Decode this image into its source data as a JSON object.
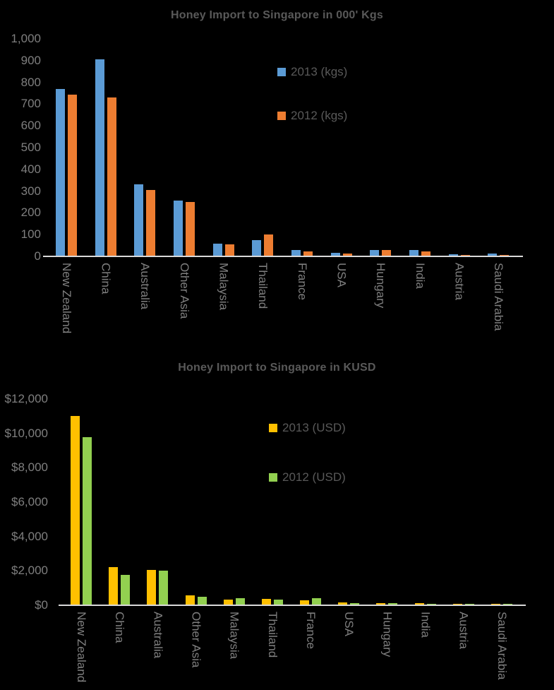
{
  "page": {
    "background": "#000000",
    "title_color": "#595959",
    "axis_text_color": "#7f7f7f",
    "axis_line_color": "#d9d9d9"
  },
  "chart_data": [
    {
      "type": "bar",
      "title": "Honey Import to Singapore in 000' Kgs",
      "categories": [
        "New Zealand",
        "China",
        "Australia",
        "Other Asia",
        "Malaysia",
        "Thailand",
        "France",
        "USA",
        "Hungary",
        "India",
        "Austria",
        "Saudi Arabia"
      ],
      "series": [
        {
          "name": "2013 (kgs)",
          "color": "#5B9BD5",
          "values": [
            770,
            905,
            330,
            255,
            60,
            75,
            28,
            15,
            28,
            30,
            10,
            12
          ]
        },
        {
          "name": "2012 (kgs)",
          "color": "#ED7D31",
          "values": [
            745,
            730,
            305,
            250,
            55,
            100,
            22,
            13,
            30,
            22,
            8,
            8
          ]
        }
      ],
      "xlabel": "",
      "ylabel": "",
      "ylim": [
        0,
        1000
      ],
      "y_ticks": [
        "1,000",
        "900",
        "800",
        "700",
        "600",
        "500",
        "400",
        "300",
        "200",
        "100",
        "0"
      ],
      "grid": false,
      "legend_position": "inside-top-right"
    },
    {
      "type": "bar",
      "title": "Honey Import to Singapore in KUSD",
      "categories": [
        "New Zealand",
        "China",
        "Australia",
        "Other Asia",
        "Malaysia",
        "Thailand",
        "France",
        "USA",
        "Hungary",
        "India",
        "Austria",
        "Saudi Arabia"
      ],
      "series": [
        {
          "name": "2013 (USD)",
          "color": "#FFC000",
          "values": [
            11000,
            2200,
            2050,
            560,
            330,
            360,
            290,
            160,
            110,
            110,
            60,
            50
          ]
        },
        {
          "name": "2012 (USD)",
          "color": "#92D050",
          "values": [
            9800,
            1750,
            2000,
            480,
            400,
            340,
            420,
            130,
            140,
            70,
            50,
            60
          ]
        }
      ],
      "xlabel": "",
      "ylabel": "",
      "ylim": [
        0,
        12000
      ],
      "y_ticks": [
        "$12,000",
        "$10,000",
        "$8,000",
        "$6,000",
        "$4,000",
        "$2,000",
        "$0"
      ],
      "grid": false,
      "legend_position": "inside-top-right"
    }
  ]
}
